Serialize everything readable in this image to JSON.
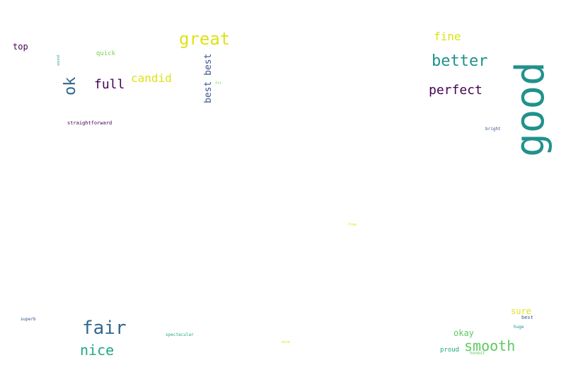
{
  "words": [
    {
      "id": "good",
      "text": "good",
      "color": "#21918c"
    },
    {
      "id": "great",
      "text": "great",
      "color": "#dde318"
    },
    {
      "id": "better",
      "text": "better",
      "color": "#20928c"
    },
    {
      "id": "fair",
      "text": "fair",
      "color": "#31688e"
    },
    {
      "id": "smooth",
      "text": "smooth",
      "color": "#5ec962"
    },
    {
      "id": "nice",
      "text": "nice",
      "color": "#22a884"
    },
    {
      "id": "perfect",
      "text": "perfect",
      "color": "#440154"
    },
    {
      "id": "ok",
      "text": "ok",
      "color": "#31688e"
    },
    {
      "id": "full",
      "text": "full",
      "color": "#440154"
    },
    {
      "id": "candid",
      "text": "candid",
      "color": "#dde318"
    },
    {
      "id": "fine",
      "text": "fine",
      "color": "#dde318"
    },
    {
      "id": "best-best",
      "text": "best best",
      "color": "#3b528b"
    },
    {
      "id": "okay",
      "text": "okay",
      "color": "#5ec962"
    },
    {
      "id": "sure",
      "text": "sure",
      "color": "#dde318"
    },
    {
      "id": "top",
      "text": "top",
      "color": "#440154"
    },
    {
      "id": "quick",
      "text": "quick",
      "color": "#7ad151"
    },
    {
      "id": "proud",
      "text": "proud",
      "color": "#22a884"
    },
    {
      "id": "straightforward",
      "text": "straightforward",
      "color": "#440154"
    },
    {
      "id": "bright",
      "text": "bright",
      "color": "#3b528b"
    },
    {
      "id": "best",
      "text": "best",
      "color": "#3b528b"
    },
    {
      "id": "huge",
      "text": "huge",
      "color": "#21918c"
    },
    {
      "id": "honest",
      "text": "honest",
      "color": "#5ec962"
    },
    {
      "id": "superb",
      "text": "superb",
      "color": "#3b528b"
    },
    {
      "id": "spectacular",
      "text": "spectacular",
      "color": "#22a884"
    },
    {
      "id": "wise",
      "text": "wise",
      "color": "#dde318"
    },
    {
      "id": "free",
      "text": "free",
      "color": "#dde318"
    },
    {
      "id": "fit",
      "text": "fit",
      "color": "#7ad151"
    },
    {
      "id": "sound",
      "text": "sound",
      "color": "#21918c"
    }
  ]
}
